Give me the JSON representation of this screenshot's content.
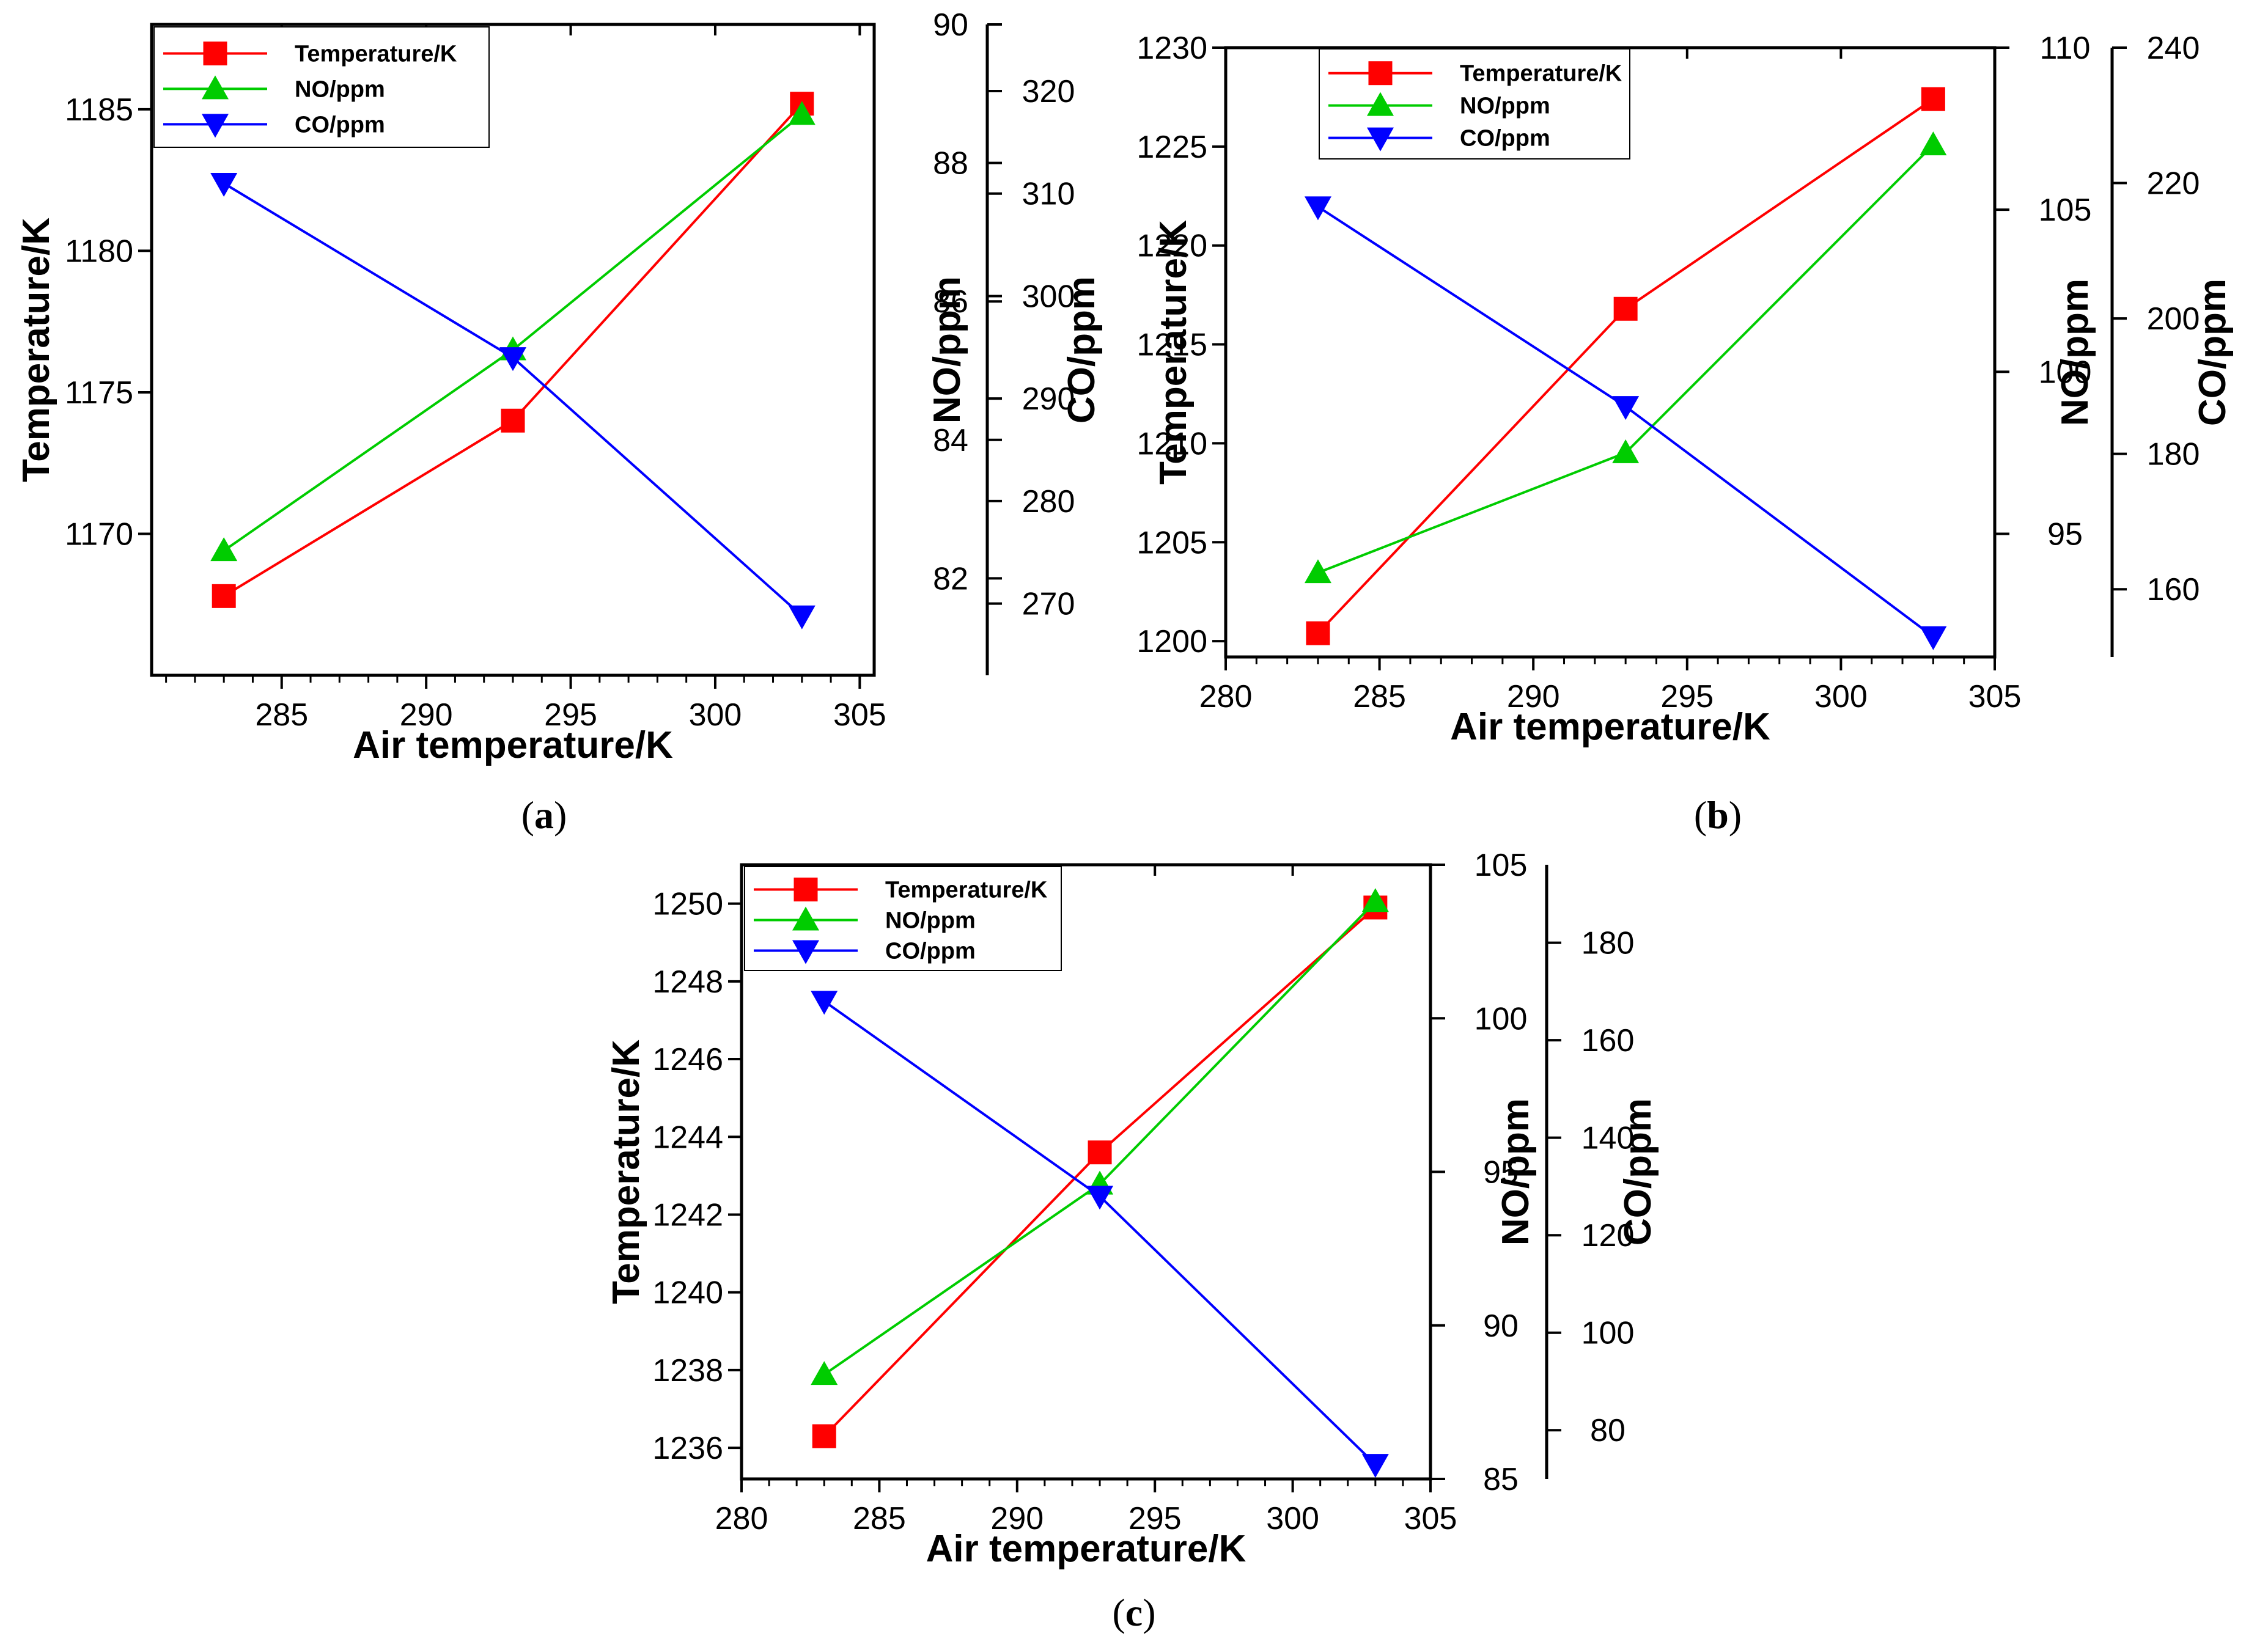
{
  "figure": {
    "legend_entries": [
      "Temperature/K",
      "NO/ppm",
      "CO/ppm"
    ],
    "colors": {
      "temperature": "#ff0000",
      "no": "#00cc00",
      "co": "#0000ff"
    }
  },
  "chart_data": [
    {
      "type": "line",
      "panel": "a",
      "panel_label_open": "(",
      "panel_label_letter": "a",
      "panel_label_close": ")",
      "xlabel": "Air temperature/K",
      "ylabel": "Temperature/K",
      "y2label": "NO/ppm",
      "y3label": "CO/ppm",
      "xlim": [
        280.5,
        305.5
      ],
      "xticks": [
        285,
        290,
        295,
        300,
        305
      ],
      "ylim": [
        1165.0,
        1188.0
      ],
      "yticks": [
        1170,
        1175,
        1180,
        1185
      ],
      "y2lim": [
        80.6,
        90.0
      ],
      "y2ticks": [
        82,
        84,
        86,
        88,
        90
      ],
      "y3lim": [
        263.0,
        326.5
      ],
      "y3ticks": [
        270,
        280,
        290,
        300,
        310,
        320
      ],
      "x": [
        283,
        293,
        303
      ],
      "series": [
        {
          "name": "Temperature/K",
          "axis": "y",
          "color": "#ff0000",
          "marker": "square",
          "values": [
            1167.8,
            1174.0,
            1185.2
          ]
        },
        {
          "name": "NO/ppm",
          "axis": "y2",
          "color": "#00cc00",
          "marker": "triangle-up",
          "values": [
            82.4,
            85.3,
            88.7
          ]
        },
        {
          "name": "CO/ppm",
          "axis": "y3",
          "color": "#0000ff",
          "marker": "triangle-down",
          "values": [
            311.0,
            294.0,
            268.8
          ]
        }
      ]
    },
    {
      "type": "line",
      "panel": "b",
      "panel_label_open": "(",
      "panel_label_letter": "b",
      "panel_label_close": ")",
      "xlabel": "Air temperature/K",
      "ylabel": "Temperature/K",
      "y2label": "NO/ppm",
      "y3label": "CO/ppm",
      "xlim": [
        280,
        305
      ],
      "xticks": [
        280,
        285,
        290,
        295,
        300,
        305
      ],
      "ylim": [
        1199.2,
        1230.0
      ],
      "yticks": [
        1200,
        1205,
        1210,
        1215,
        1220,
        1225,
        1230
      ],
      "y2lim": [
        91.2,
        110.0
      ],
      "y2ticks": [
        95,
        100,
        105,
        110
      ],
      "y3lim": [
        150.0,
        240.0
      ],
      "y3ticks": [
        160,
        180,
        200,
        220,
        240
      ],
      "x": [
        283,
        293,
        303
      ],
      "series": [
        {
          "name": "Temperature/K",
          "axis": "y",
          "color": "#ff0000",
          "marker": "square",
          "values": [
            1200.4,
            1216.8,
            1227.4
          ]
        },
        {
          "name": "NO/ppm",
          "axis": "y2",
          "color": "#00cc00",
          "marker": "triangle-up",
          "values": [
            93.8,
            97.5,
            107.0
          ]
        },
        {
          "name": "CO/ppm",
          "axis": "y3",
          "color": "#0000ff",
          "marker": "triangle-down",
          "values": [
            216.5,
            187.0,
            153.0
          ]
        }
      ]
    },
    {
      "type": "line",
      "panel": "c",
      "panel_label_open": "(",
      "panel_label_letter": "c",
      "panel_label_close": ")",
      "xlabel": "Air temperature/K",
      "ylabel": "Temperature/K",
      "y2label": "NO/ppm",
      "y3label": "CO/ppm",
      "xlim": [
        280,
        305
      ],
      "xticks": [
        280,
        285,
        290,
        295,
        300,
        305
      ],
      "ylim": [
        1235.2,
        1251.0
      ],
      "yticks": [
        1236,
        1238,
        1240,
        1242,
        1244,
        1246,
        1248,
        1250
      ],
      "y2lim": [
        85.0,
        105.0
      ],
      "y2ticks": [
        85,
        90,
        95,
        100,
        105
      ],
      "y3lim": [
        70.0,
        196.0
      ],
      "y3ticks": [
        80,
        100,
        120,
        140,
        160,
        180
      ],
      "x": [
        283,
        293,
        303
      ],
      "series": [
        {
          "name": "Temperature/K",
          "axis": "y",
          "color": "#ff0000",
          "marker": "square",
          "values": [
            1236.3,
            1243.6,
            1249.9
          ]
        },
        {
          "name": "NO/ppm",
          "axis": "y2",
          "color": "#00cc00",
          "marker": "triangle-up",
          "values": [
            88.4,
            94.6,
            103.8
          ]
        },
        {
          "name": "CO/ppm",
          "axis": "y3",
          "color": "#0000ff",
          "marker": "triangle-down",
          "values": [
            168.0,
            128.0,
            73.0
          ]
        }
      ]
    }
  ]
}
